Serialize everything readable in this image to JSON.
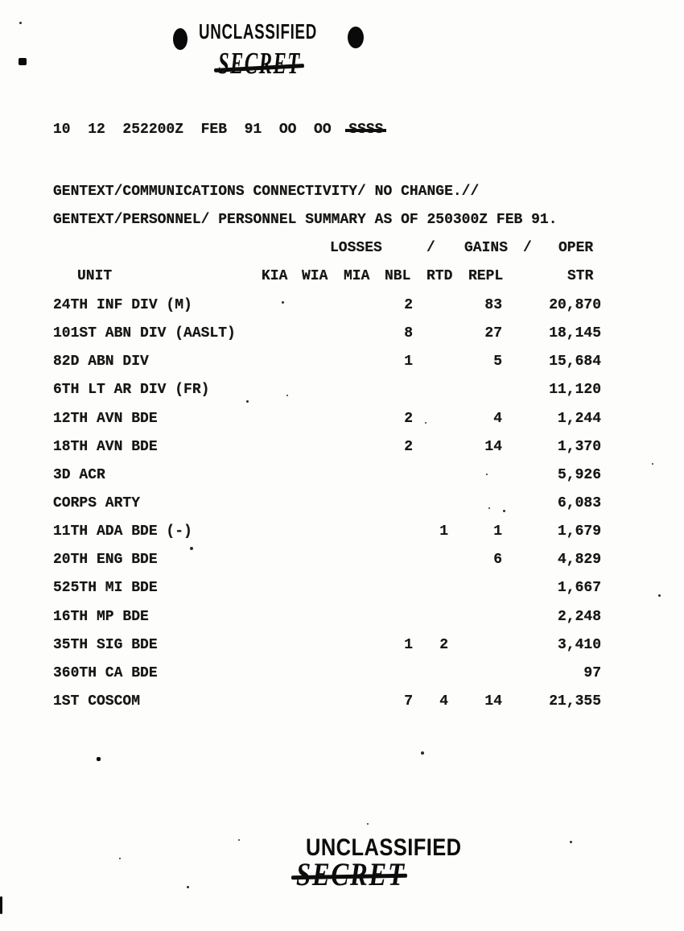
{
  "classification": {
    "top_unclassified": "UNCLASSIFIED",
    "top_secret": "SECRET",
    "bottom_unclassified": "UNCLASSIFIED",
    "bottom_secret": "SECRET"
  },
  "header_line": {
    "text": "10  12  252200Z  FEB  91  OO  OO  ",
    "struck_text": "SSSS"
  },
  "gentext": {
    "line1": "GENTEXT/COMMUNICATIONS CONNECTIVITY/ NO CHANGE.//",
    "line2": "GENTEXT/PERSONNEL/ PERSONNEL SUMMARY AS OF 250300Z FEB 91."
  },
  "table": {
    "group_headers": [
      "LOSSES",
      "/",
      "GAINS",
      "/",
      "OPER"
    ],
    "columns": [
      "UNIT",
      "KIA",
      "WIA",
      "MIA",
      "NBL",
      "RTD",
      "REPL",
      "STR"
    ],
    "rows": [
      {
        "unit": "24TH INF DIV (M)",
        "kia": "",
        "wia": "",
        "mia": "",
        "nbl": "2",
        "rtd": "",
        "repl": "83",
        "str": "20,870"
      },
      {
        "unit": "101ST ABN DIV (AASLT)",
        "kia": "",
        "wia": "",
        "mia": "",
        "nbl": "8",
        "rtd": "",
        "repl": "27",
        "str": "18,145"
      },
      {
        "unit": "82D ABN DIV",
        "kia": "",
        "wia": "",
        "mia": "",
        "nbl": "1",
        "rtd": "",
        "repl": "5",
        "str": "15,684"
      },
      {
        "unit": "6TH LT AR DIV (FR)",
        "kia": "",
        "wia": "",
        "mia": "",
        "nbl": "",
        "rtd": "",
        "repl": "",
        "str": "11,120"
      },
      {
        "unit": "12TH AVN BDE",
        "kia": "",
        "wia": "",
        "mia": "",
        "nbl": "2",
        "rtd": "",
        "repl": "4",
        "str": "1,244"
      },
      {
        "unit": "18TH AVN BDE",
        "kia": "",
        "wia": "",
        "mia": "",
        "nbl": "2",
        "rtd": "",
        "repl": "14",
        "str": "1,370"
      },
      {
        "unit": "3D ACR",
        "kia": "",
        "wia": "",
        "mia": "",
        "nbl": "",
        "rtd": "",
        "repl": "",
        "str": "5,926"
      },
      {
        "unit": "CORPS ARTY",
        "kia": "",
        "wia": "",
        "mia": "",
        "nbl": "",
        "rtd": "",
        "repl": "",
        "str": "6,083"
      },
      {
        "unit": "11TH ADA BDE (-)",
        "kia": "",
        "wia": "",
        "mia": "",
        "nbl": "",
        "rtd": "1",
        "repl": "1",
        "str": "1,679"
      },
      {
        "unit": "20TH ENG BDE",
        "kia": "",
        "wia": "",
        "mia": "",
        "nbl": "",
        "rtd": "",
        "repl": "6",
        "str": "4,829"
      },
      {
        "unit": "525TH MI BDE",
        "kia": "",
        "wia": "",
        "mia": "",
        "nbl": "",
        "rtd": "",
        "repl": "",
        "str": "1,667"
      },
      {
        "unit": "16TH MP BDE",
        "kia": "",
        "wia": "",
        "mia": "",
        "nbl": "",
        "rtd": "",
        "repl": "",
        "str": "2,248"
      },
      {
        "unit": "35TH SIG BDE",
        "kia": "",
        "wia": "",
        "mia": "",
        "nbl": "1",
        "rtd": "2",
        "repl": "",
        "str": "3,410"
      },
      {
        "unit": "360TH CA BDE",
        "kia": "",
        "wia": "",
        "mia": "",
        "nbl": "",
        "rtd": "",
        "repl": "",
        "str": "97"
      },
      {
        "unit": "1ST COSCOM",
        "kia": "",
        "wia": "",
        "mia": "",
        "nbl": "7",
        "rtd": "4",
        "repl": "14",
        "str": "21,355"
      }
    ]
  },
  "colors": {
    "ink": "#141414",
    "paper": "#fdfdfb"
  }
}
